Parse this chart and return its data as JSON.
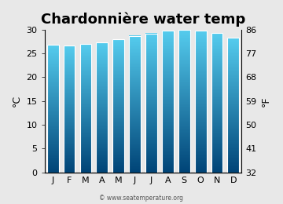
{
  "title": "Chardonnière water temp",
  "months": [
    "J",
    "F",
    "M",
    "A",
    "M",
    "J",
    "J",
    "A",
    "S",
    "O",
    "N",
    "D"
  ],
  "temps_c": [
    26.8,
    26.7,
    27.0,
    27.3,
    28.0,
    28.7,
    29.2,
    29.8,
    29.9,
    29.8,
    29.3,
    28.3
  ],
  "ylim_c": [
    0,
    30
  ],
  "yticks_c": [
    0,
    5,
    10,
    15,
    20,
    25,
    30
  ],
  "yticks_f": [
    32,
    41,
    50,
    59,
    68,
    77,
    86
  ],
  "ylabel_left": "°C",
  "ylabel_right": "°F",
  "watermark": "© www.seatemperature.org",
  "bg_color": "#e8e8e8",
  "bar_top_color": "#55ccee",
  "bar_bottom_color": "#004477",
  "bar_edge_color": "#ffffff",
  "title_fontsize": 13,
  "axis_fontsize": 8,
  "label_fontsize": 9
}
